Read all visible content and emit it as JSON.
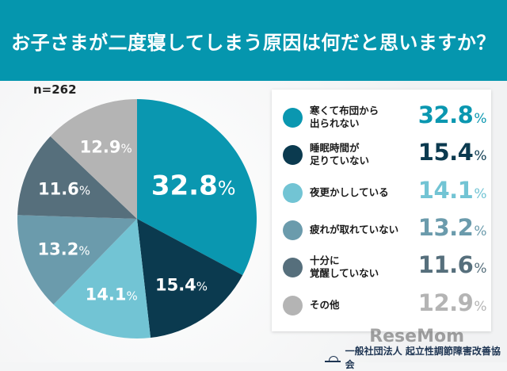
{
  "title": "お子さまが二度寝してしまう原因は何だと思いますか？",
  "sample_size": "n=262",
  "footer": "一般社団法人 起立性調節障害改善協会",
  "watermark": "ReseMom",
  "chart_data": {
    "type": "pie",
    "title": "お子さまが二度寝してしまう原因は何だと思いますか？",
    "start": "top",
    "direction": "clockwise",
    "legend_position": "right",
    "slices": [
      {
        "label": "寒くて布団から\n出られない",
        "value": 32.8,
        "display": "32.8",
        "color": "#0a97b0"
      },
      {
        "label": "睡眠時間が\n足りていない",
        "value": 15.4,
        "display": "15.4",
        "color": "#0b3a4f"
      },
      {
        "label": "夜更かししている",
        "value": 14.1,
        "display": "14.1",
        "color": "#72c4d4"
      },
      {
        "label": "疲れが取れていない",
        "value": 13.2,
        "display": "13.2",
        "color": "#6b9bac"
      },
      {
        "label": "十分に\n覚醒していない",
        "value": 11.6,
        "display": "11.6",
        "color": "#566f7c"
      },
      {
        "label": "その他",
        "value": 12.9,
        "display": "12.9",
        "color": "#b4b4b4"
      }
    ],
    "unit": "%"
  }
}
